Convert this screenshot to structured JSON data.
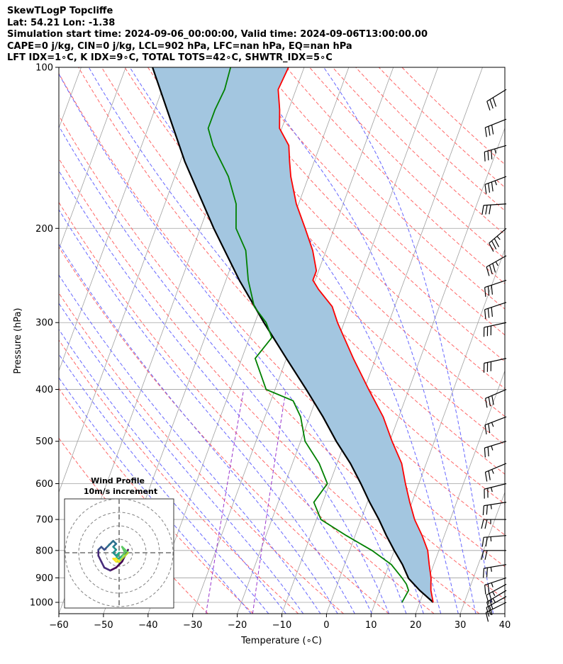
{
  "header": {
    "line1": "SkewTLogP Topcliffe",
    "line2": "Lat: 54.21    Lon: -1.38",
    "line3": "Simulation start time: 2024-09-06_00:00:00, Valid time: 2024-09-06T13:00:00.00",
    "line4": "CAPE=0 j/kg, CIN=0 j/kg, LCL=902 hPa, LFC=nan hPa, EQ=nan hPa",
    "line5": "LFT IDX=1∘C, K IDX=9∘C, TOTAL TOTS=42∘C, SHWTR_IDX=5∘C"
  },
  "chart_data": {
    "type": "line",
    "title": "SkewTLogP Topcliffe",
    "xlabel": "Temperature (∘C)",
    "ylabel": "Pressure (hPa)",
    "xlim": [
      -60,
      40
    ],
    "ylim": [
      1050,
      100
    ],
    "y_scale": "log",
    "x_ticks": [
      "−60",
      "−50",
      "−40",
      "−30",
      "−20",
      "−10",
      "0",
      "10",
      "20",
      "30",
      "40"
    ],
    "y_ticks": [
      "100",
      "200",
      "300",
      "400",
      "500",
      "600",
      "700",
      "800",
      "900",
      "1000"
    ],
    "grid": true,
    "colors": {
      "temperature": "#ff0000",
      "dewpoint": "#008000",
      "parcel": "#000000",
      "cape_fill": "#a3c6e0",
      "dry_adiabats": "#ff6666",
      "moist_adiabats": "#6666ff",
      "mixing_ratio": "#9933cc",
      "isotherms": "#a0a0a0"
    },
    "series": [
      {
        "name": "",
        "role": "temperature",
        "points": [
          [
            1000,
            23.0
          ],
          [
            950,
            21.5
          ],
          [
            925,
            21.0
          ],
          [
            900,
            20.5
          ],
          [
            850,
            19.0
          ],
          [
            800,
            17.5
          ],
          [
            750,
            15.0
          ],
          [
            700,
            12.0
          ],
          [
            650,
            9.5
          ],
          [
            600,
            7.0
          ],
          [
            550,
            4.5
          ],
          [
            500,
            0.5
          ],
          [
            450,
            -3.5
          ],
          [
            400,
            -9.0
          ],
          [
            350,
            -15.0
          ],
          [
            300,
            -21.5
          ],
          [
            280,
            -24.0
          ],
          [
            260,
            -28.5
          ],
          [
            250,
            -30.5
          ],
          [
            240,
            -30.5
          ],
          [
            220,
            -33.0
          ],
          [
            200,
            -36.5
          ],
          [
            180,
            -40.5
          ],
          [
            160,
            -44.0
          ],
          [
            150,
            -45.5
          ],
          [
            140,
            -47.0
          ],
          [
            130,
            -50.5
          ],
          [
            120,
            -52.0
          ],
          [
            110,
            -54.0
          ],
          [
            100,
            -53.5
          ]
        ]
      },
      {
        "name": "",
        "role": "dewpoint",
        "points": [
          [
            1000,
            16.0
          ],
          [
            950,
            16.5
          ],
          [
            925,
            15.5
          ],
          [
            900,
            14.0
          ],
          [
            850,
            10.5
          ],
          [
            800,
            5.0
          ],
          [
            750,
            -2.0
          ],
          [
            700,
            -9.0
          ],
          [
            650,
            -12.0
          ],
          [
            600,
            -10.5
          ],
          [
            550,
            -14.0
          ],
          [
            500,
            -19.0
          ],
          [
            450,
            -22.0
          ],
          [
            420,
            -25.0
          ],
          [
            400,
            -32.0
          ],
          [
            350,
            -37.0
          ],
          [
            320,
            -35.0
          ],
          [
            300,
            -37.5
          ],
          [
            280,
            -41.5
          ],
          [
            250,
            -45.0
          ],
          [
            220,
            -48.0
          ],
          [
            200,
            -52.0
          ],
          [
            180,
            -54.0
          ],
          [
            160,
            -58.0
          ],
          [
            140,
            -64.0
          ],
          [
            130,
            -66.5
          ],
          [
            120,
            -66.5
          ],
          [
            110,
            -66.0
          ],
          [
            100,
            -66.5
          ]
        ]
      },
      {
        "name": "",
        "role": "parcel",
        "points": [
          [
            1000,
            23.0
          ],
          [
            950,
            19.0
          ],
          [
            902,
            15.5
          ],
          [
            850,
            13.0
          ],
          [
            800,
            10.0
          ],
          [
            750,
            7.0
          ],
          [
            700,
            4.0
          ],
          [
            650,
            0.5
          ],
          [
            600,
            -3.0
          ],
          [
            550,
            -7.0
          ],
          [
            500,
            -12.0
          ],
          [
            450,
            -17.0
          ],
          [
            400,
            -23.0
          ],
          [
            350,
            -30.0
          ],
          [
            300,
            -38.0
          ],
          [
            250,
            -47.0
          ],
          [
            200,
            -57.0
          ],
          [
            150,
            -69.0
          ],
          [
            100,
            -84.0
          ]
        ]
      }
    ],
    "winds": [
      {
        "p": 1000,
        "u": 8,
        "v": 4
      },
      {
        "p": 975,
        "u": 9,
        "v": 5
      },
      {
        "p": 950,
        "u": 10,
        "v": 6
      },
      {
        "p": 925,
        "u": 11,
        "v": 6
      },
      {
        "p": 900,
        "u": 12,
        "v": 4
      },
      {
        "p": 850,
        "u": 12,
        "v": 2
      },
      {
        "p": 800,
        "u": 11,
        "v": 0
      },
      {
        "p": 750,
        "u": 12,
        "v": 1
      },
      {
        "p": 700,
        "u": 13,
        "v": 0
      },
      {
        "p": 650,
        "u": 13,
        "v": 2
      },
      {
        "p": 600,
        "u": 12,
        "v": 3
      },
      {
        "p": 550,
        "u": 12,
        "v": 5
      },
      {
        "p": 500,
        "u": 13,
        "v": 4
      },
      {
        "p": 450,
        "u": 13,
        "v": 5
      },
      {
        "p": 400,
        "u": 14,
        "v": 6
      },
      {
        "p": 350,
        "u": 14,
        "v": 3
      },
      {
        "p": 300,
        "u": 14,
        "v": 3
      },
      {
        "p": 275,
        "u": 15,
        "v": 5
      },
      {
        "p": 250,
        "u": 15,
        "v": 5
      },
      {
        "p": 225,
        "u": 16,
        "v": 9
      },
      {
        "p": 200,
        "u": 14,
        "v": 12
      },
      {
        "p": 180,
        "u": 16,
        "v": 1
      },
      {
        "p": 160,
        "u": 16,
        "v": 6
      },
      {
        "p": 140,
        "u": 17,
        "v": 5
      },
      {
        "p": 125,
        "u": 15,
        "v": 6
      },
      {
        "p": 110,
        "u": 13,
        "v": 8
      }
    ],
    "hodograph": {
      "title": "Wind Profile",
      "subtitle": "10m/s increment",
      "rings_ms": [
        10,
        20,
        30,
        40
      ],
      "points": [
        [
          3,
          1
        ],
        [
          2,
          -1
        ],
        [
          1,
          -3
        ],
        [
          -1,
          -5
        ],
        [
          -3,
          -6
        ],
        [
          -5,
          -5
        ],
        [
          -6,
          -3
        ],
        [
          -7,
          -1
        ],
        [
          -7,
          1
        ],
        [
          -6,
          2
        ],
        [
          -5,
          1
        ],
        [
          -4,
          2
        ],
        [
          -3,
          3
        ],
        [
          -2,
          4
        ],
        [
          -1,
          3
        ],
        [
          -2,
          2
        ],
        [
          -1,
          1
        ],
        [
          -2,
          0
        ],
        [
          -1,
          -1
        ],
        [
          0,
          0
        ],
        [
          -1,
          -2
        ],
        [
          0,
          -2
        ],
        [
          1,
          -1
        ],
        [
          2,
          0
        ],
        [
          1,
          2
        ],
        [
          2,
          1
        ],
        [
          3,
          0
        ],
        [
          2,
          -1
        ],
        [
          1,
          -2
        ],
        [
          0,
          -3
        ],
        [
          -1,
          -3
        ],
        [
          -2,
          -2
        ],
        [
          -1,
          -2
        ],
        [
          0,
          -3
        ]
      ]
    }
  }
}
